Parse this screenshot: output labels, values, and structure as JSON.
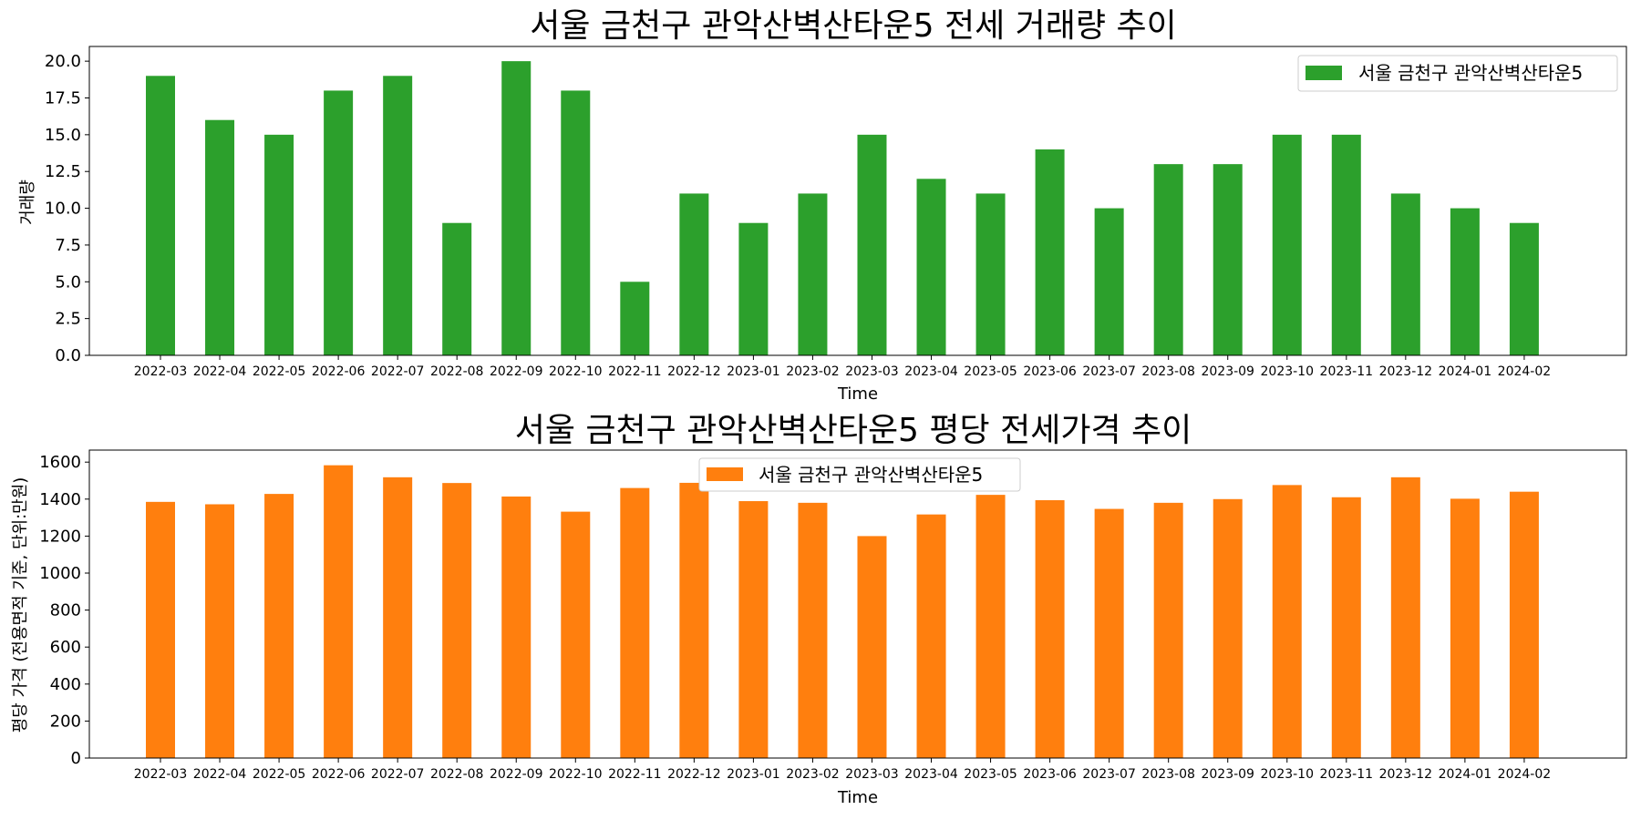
{
  "chart_data": [
    {
      "type": "bar",
      "title": "서울 금천구 관악산벽산타운5 전세 거래량 추이",
      "xlabel": "Time",
      "ylabel": "거래량",
      "ylim": [
        0,
        21
      ],
      "yticks": [
        "0.0",
        "2.5",
        "5.0",
        "7.5",
        "10.0",
        "12.5",
        "15.0",
        "17.5",
        "20.0"
      ],
      "ytick_values": [
        0,
        2.5,
        5,
        7.5,
        10,
        12.5,
        15,
        17.5,
        20
      ],
      "categories": [
        "2022-03",
        "2022-04",
        "2022-05",
        "2022-06",
        "2022-07",
        "2022-08",
        "2022-09",
        "2022-10",
        "2022-11",
        "2022-12",
        "2023-01",
        "2023-02",
        "2023-03",
        "2023-04",
        "2023-05",
        "2023-06",
        "2023-07",
        "2023-08",
        "2023-09",
        "2023-10",
        "2023-11",
        "2023-12",
        "2024-01",
        "2024-02"
      ],
      "series": [
        {
          "name": "서울 금천구 관악산벽산타운5",
          "color": "#2ca02c",
          "values": [
            19,
            16,
            15,
            18,
            19,
            9,
            20,
            18,
            5,
            11,
            9,
            11,
            15,
            12,
            11,
            14,
            10,
            13,
            13,
            15,
            15,
            11,
            10,
            9
          ]
        }
      ],
      "legend": "top-right",
      "grid": false
    },
    {
      "type": "bar",
      "title": "서울 금천구 관악산벽산타운5 평당 전세가격 추이",
      "xlabel": "Time",
      "ylabel": "평당 가격 (전용면적 기준, 단위:만원)",
      "ylim": [
        0,
        1665
      ],
      "yticks": [
        "0",
        "200",
        "400",
        "600",
        "800",
        "1000",
        "1200",
        "1400",
        "1600"
      ],
      "ytick_values": [
        0,
        200,
        400,
        600,
        800,
        1000,
        1200,
        1400,
        1600
      ],
      "categories": [
        "2022-03",
        "2022-04",
        "2022-05",
        "2022-06",
        "2022-07",
        "2022-08",
        "2022-09",
        "2022-10",
        "2022-11",
        "2022-12",
        "2023-01",
        "2023-02",
        "2023-03",
        "2023-04",
        "2023-05",
        "2023-06",
        "2023-07",
        "2023-08",
        "2023-09",
        "2023-10",
        "2023-11",
        "2023-12",
        "2024-01",
        "2024-02"
      ],
      "series": [
        {
          "name": "서울 금천구 관악산벽산타운5",
          "color": "#ff7f0e",
          "values": [
            1385,
            1372,
            1428,
            1583,
            1518,
            1487,
            1414,
            1332,
            1460,
            1488,
            1389,
            1380,
            1200,
            1317,
            1423,
            1394,
            1347,
            1380,
            1400,
            1476,
            1410,
            1518,
            1402,
            1440
          ]
        }
      ],
      "legend": "top-center",
      "grid": false
    }
  ]
}
